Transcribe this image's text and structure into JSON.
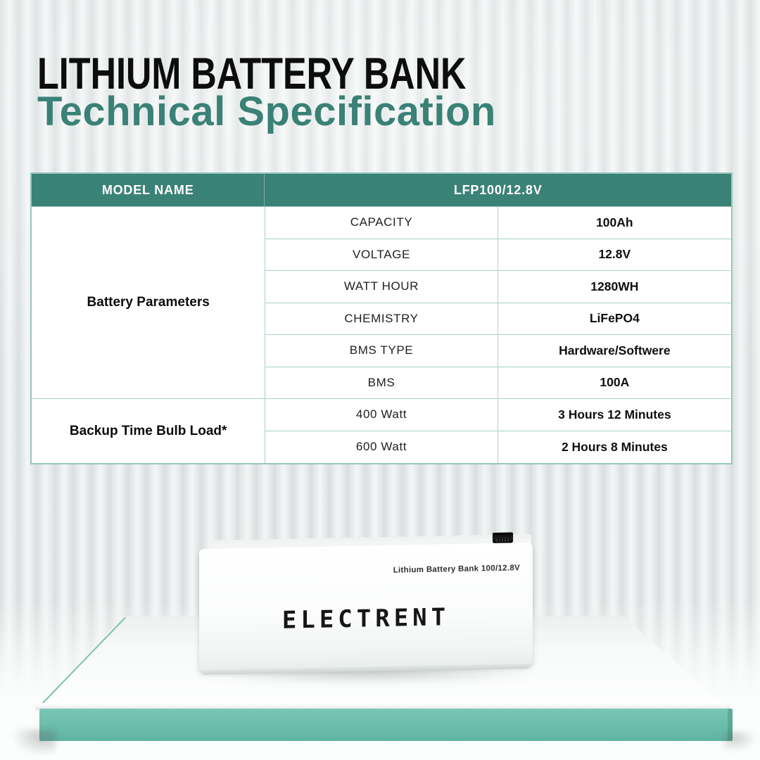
{
  "poster": {
    "title_line1": "LITHIUM BATTERY BANK",
    "title_line2": "Technical Specification"
  },
  "colors": {
    "title_black": "#0d0d0d",
    "accent_teal": "#3a8176",
    "table_header_bg": "#3a8276",
    "table_grid_line": "#a9d1c8",
    "platform_teal": "#6fbfae",
    "wall_gray": "#e6eae9"
  },
  "spec_table": {
    "header": {
      "model_label": "MODEL NAME",
      "model_value": "LFP100/12.8V"
    },
    "sections": [
      {
        "label": "Battery Parameters",
        "rows": [
          {
            "name": "CAPACITY",
            "value": "100Ah"
          },
          {
            "name": "VOLTAGE",
            "value": "12.8V"
          },
          {
            "name": "WATT HOUR",
            "value": "1280WH"
          },
          {
            "name": "CHEMISTRY",
            "value": "LiFePO4"
          },
          {
            "name": "BMS TYPE",
            "value": "Hardware/Softwere"
          },
          {
            "name": "BMS",
            "value": "100A"
          }
        ]
      },
      {
        "label": "Backup Time Bulb Load*",
        "rows": [
          {
            "name": "400 Watt",
            "value": "3 Hours 12 Minutes"
          },
          {
            "name": "600 Watt",
            "value": "2 Hours 8 Minutes"
          }
        ]
      }
    ]
  },
  "product": {
    "brand": "ELECTRENT",
    "top_label": "Lithium Battery Bank 100/12.8V",
    "icons": {
      "battery_port": "black-terminal-block"
    }
  }
}
